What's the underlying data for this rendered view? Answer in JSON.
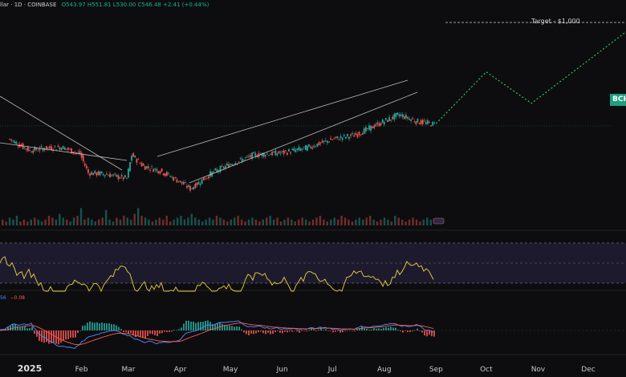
{
  "header": {
    "title_prefix": "llar · 1D · COINBASE",
    "ohlc": "O543.97 H551.81 L530.00 C546.48 +2.41 (+0.44%)"
  },
  "annotations": {
    "target_label": "Target - $1,000",
    "price_tag": "BCH"
  },
  "macd_header": {
    "val_a": "56",
    "val_b": "−0.08"
  },
  "colors": {
    "up": "#26a69a",
    "down": "#ef5350",
    "rsi": "#e8d43a",
    "projection": "#35c25a",
    "macd": "#4f8cff",
    "signal": "#ff5a52",
    "rsi_band": "#1e1a2e",
    "trendline": "#d8d8d8"
  },
  "chart_data": {
    "type": "candlestick",
    "symbol": "BCH",
    "exchange": "COINBASE",
    "interval": "1D",
    "x_axis": {
      "ticks": [
        "2025",
        "Feb",
        "Mar",
        "Apr",
        "May",
        "Jun",
        "Jul",
        "Aug",
        "Sep",
        "Oct",
        "Nov",
        "Dec"
      ]
    },
    "price_path": [
      {
        "date": "2024-12-20",
        "close": 480
      },
      {
        "date": "2025-01-01",
        "close": 430
      },
      {
        "date": "2025-01-10",
        "close": 440
      },
      {
        "date": "2025-01-20",
        "close": 445
      },
      {
        "date": "2025-01-31",
        "close": 415
      },
      {
        "date": "2025-02-05",
        "close": 330
      },
      {
        "date": "2025-02-15",
        "close": 325
      },
      {
        "date": "2025-02-28",
        "close": 305
      },
      {
        "date": "2025-03-03",
        "close": 410
      },
      {
        "date": "2025-03-10",
        "close": 360
      },
      {
        "date": "2025-03-20",
        "close": 340
      },
      {
        "date": "2025-04-01",
        "close": 290
      },
      {
        "date": "2025-04-07",
        "close": 260
      },
      {
        "date": "2025-04-20",
        "close": 330
      },
      {
        "date": "2025-05-01",
        "close": 370
      },
      {
        "date": "2025-05-15",
        "close": 410
      },
      {
        "date": "2025-06-01",
        "close": 420
      },
      {
        "date": "2025-06-15",
        "close": 440
      },
      {
        "date": "2025-07-01",
        "close": 480
      },
      {
        "date": "2025-07-15",
        "close": 500
      },
      {
        "date": "2025-08-01",
        "close": 560
      },
      {
        "date": "2025-08-10",
        "close": 590
      },
      {
        "date": "2025-08-20",
        "close": 560
      },
      {
        "date": "2025-08-31",
        "close": 546.48
      }
    ],
    "projection": [
      {
        "date": "2025-09-01",
        "close": 550
      },
      {
        "date": "2025-10-01",
        "close": 780
      },
      {
        "date": "2025-10-28",
        "close": 640
      },
      {
        "date": "2025-12-31",
        "close": 1000
      }
    ],
    "target_level": 1000,
    "volume_profile": [
      3,
      2,
      4,
      3,
      5,
      2,
      3,
      2,
      3,
      4,
      3,
      2,
      3,
      5,
      4,
      3,
      6,
      4,
      3,
      2,
      4,
      5,
      9,
      3,
      4,
      3,
      2,
      3,
      4,
      8,
      3,
      2,
      4,
      3,
      5,
      4,
      3,
      6,
      9,
      5,
      4,
      3,
      2,
      3,
      4,
      3,
      5,
      2,
      3,
      4,
      5,
      3,
      4,
      6,
      4,
      3,
      2,
      3,
      4,
      3,
      5,
      4,
      3,
      2,
      3,
      4,
      5,
      3,
      2,
      3,
      4,
      3,
      2,
      3,
      4,
      5,
      3,
      4,
      2,
      3,
      4,
      3,
      2,
      3,
      4,
      3,
      2,
      3,
      4,
      5,
      3,
      2,
      3,
      4,
      3,
      5,
      4,
      3,
      2,
      3,
      4,
      3,
      4,
      5,
      3,
      2,
      3,
      4,
      3,
      2,
      5,
      4,
      3,
      2,
      3,
      4,
      3,
      2,
      3,
      4,
      3
    ],
    "rsi": {
      "upper": 70,
      "lower": 30,
      "ylim": [
        0,
        100
      ],
      "last": 52
    },
    "macd": {
      "last_macd": -4,
      "last_signal": -3,
      "last_hist": -0.08
    }
  }
}
